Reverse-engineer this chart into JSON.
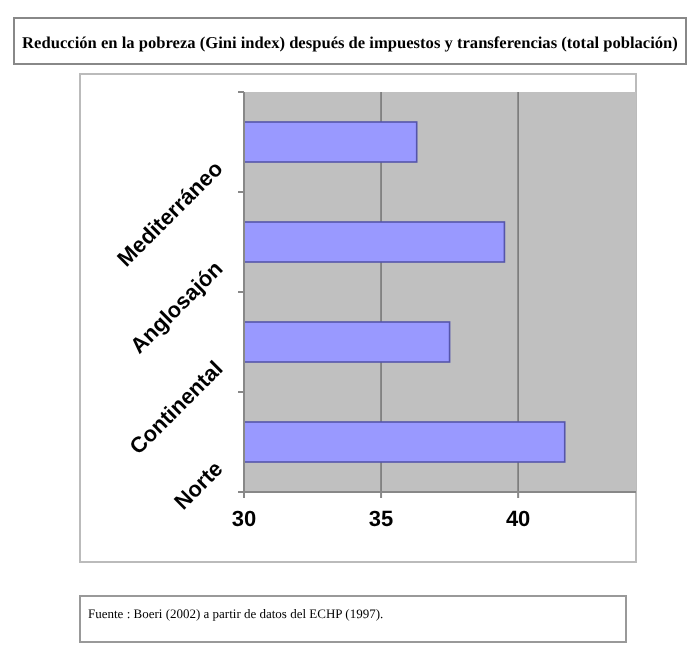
{
  "chart_data": {
    "type": "bar",
    "orientation": "horizontal",
    "title": "Reducción en la pobreza (Gini index) después de impuestos y transferencias (total población)",
    "categories": [
      "Mediterráneo",
      "Anglosajón",
      "Continental",
      "Norte"
    ],
    "values": [
      36.3,
      39.5,
      37.5,
      41.7
    ],
    "color": "#9999ff",
    "xlim": [
      30,
      44.3
    ],
    "xticks": [
      30,
      35,
      40
    ],
    "grid": "x",
    "annotations": [
      "Fuente : Boeri (2002) a partir de datos del ECHP (1997)."
    ]
  }
}
